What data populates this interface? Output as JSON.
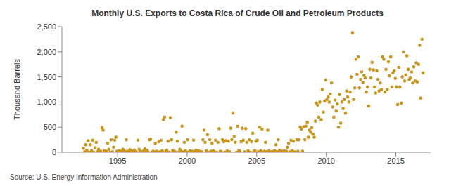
{
  "chart_data": {
    "type": "scatter",
    "title": "Monthly U.S. Exports to Costa Rica of Crude Oil and Petroleum Products",
    "y_label": "Thousand Barrels",
    "source": "Source: U.S. Energy Information Administration",
    "color": "#c8951e",
    "marker": "circle",
    "grid": false,
    "xlim": [
      1991,
      2017.5
    ],
    "xticks": [
      1995,
      2000,
      2005,
      2010,
      2015
    ],
    "ylim": [
      0,
      2500
    ],
    "yticks": [
      0,
      500,
      {
        "value": 1000,
        "label": "1,000"
      },
      {
        "value": 1500,
        "label": "1,500"
      },
      {
        "value": 2000,
        "label": "2,000"
      },
      {
        "value": 2500,
        "label": "2,500"
      }
    ],
    "x": [
      1992.54,
      1992.63,
      1992.71,
      1992.79,
      1992.88,
      1992.96,
      1993.04,
      1993.13,
      1993.21,
      1993.29,
      1993.38,
      1993.46,
      1993.54,
      1993.63,
      1993.71,
      1993.79,
      1993.88,
      1993.96,
      1994.04,
      1994.13,
      1994.21,
      1994.29,
      1994.38,
      1994.46,
      1994.54,
      1994.63,
      1994.71,
      1994.79,
      1994.88,
      1994.96,
      1995.04,
      1995.13,
      1995.21,
      1995.29,
      1995.38,
      1995.46,
      1995.54,
      1995.63,
      1995.71,
      1995.79,
      1995.88,
      1995.96,
      1996.04,
      1996.13,
      1996.21,
      1996.29,
      1996.38,
      1996.46,
      1996.54,
      1996.63,
      1996.71,
      1996.79,
      1996.88,
      1996.96,
      1997.04,
      1997.13,
      1997.21,
      1997.29,
      1997.38,
      1997.46,
      1997.54,
      1997.63,
      1997.71,
      1997.79,
      1997.88,
      1997.96,
      1998.04,
      1998.13,
      1998.21,
      1998.29,
      1998.38,
      1998.46,
      1998.54,
      1998.63,
      1998.71,
      1998.79,
      1998.88,
      1998.96,
      1999.04,
      1999.13,
      1999.21,
      1999.29,
      1999.38,
      1999.46,
      1999.54,
      1999.63,
      1999.71,
      1999.79,
      1999.88,
      1999.96,
      2000.04,
      2000.13,
      2000.21,
      2000.29,
      2000.38,
      2000.46,
      2000.54,
      2000.63,
      2000.71,
      2000.79,
      2000.88,
      2000.96,
      2001.04,
      2001.13,
      2001.21,
      2001.29,
      2001.38,
      2001.46,
      2001.54,
      2001.63,
      2001.71,
      2001.79,
      2001.88,
      2001.96,
      2002.04,
      2002.13,
      2002.21,
      2002.29,
      2002.38,
      2002.46,
      2002.54,
      2002.63,
      2002.71,
      2002.79,
      2002.88,
      2002.96,
      2003.04,
      2003.13,
      2003.21,
      2003.29,
      2003.38,
      2003.46,
      2003.54,
      2003.63,
      2003.71,
      2003.79,
      2003.88,
      2003.96,
      2004.04,
      2004.13,
      2004.21,
      2004.29,
      2004.38,
      2004.46,
      2004.54,
      2004.63,
      2004.71,
      2004.79,
      2004.88,
      2004.96,
      2005.04,
      2005.13,
      2005.21,
      2005.29,
      2005.38,
      2005.46,
      2005.54,
      2005.63,
      2005.71,
      2005.79,
      2005.88,
      2005.96,
      2006.04,
      2006.13,
      2006.21,
      2006.29,
      2006.38,
      2006.46,
      2006.54,
      2006.63,
      2006.71,
      2006.79,
      2006.88,
      2006.96,
      2007.04,
      2007.13,
      2007.21,
      2007.29,
      2007.38,
      2007.46,
      2007.54,
      2007.63,
      2007.71,
      2007.79,
      2007.88,
      2007.96,
      2008.04,
      2008.13,
      2008.21,
      2008.29,
      2008.38,
      2008.46,
      2008.54,
      2008.63,
      2008.71,
      2008.79,
      2008.88,
      2008.96,
      2009.04,
      2009.13,
      2009.21,
      2009.29,
      2009.38,
      2009.46,
      2009.54,
      2009.63,
      2009.71,
      2009.79,
      2009.88,
      2009.96,
      2010.04,
      2010.13,
      2010.21,
      2010.29,
      2010.38,
      2010.46,
      2010.54,
      2010.63,
      2010.71,
      2010.79,
      2010.88,
      2010.96,
      2011.04,
      2011.13,
      2011.21,
      2011.29,
      2011.38,
      2011.46,
      2011.54,
      2011.63,
      2011.71,
      2011.79,
      2011.88,
      2011.96,
      2012.04,
      2012.13,
      2012.21,
      2012.29,
      2012.38,
      2012.46,
      2012.54,
      2012.63,
      2012.71,
      2012.79,
      2012.88,
      2012.96,
      2013.04,
      2013.13,
      2013.21,
      2013.29,
      2013.38,
      2013.46,
      2013.54,
      2013.63,
      2013.71,
      2013.79,
      2013.88,
      2013.96,
      2014.04,
      2014.13,
      2014.21,
      2014.29,
      2014.38,
      2014.46,
      2014.54,
      2014.63,
      2014.71,
      2014.79,
      2014.88,
      2014.96,
      2015.04,
      2015.13,
      2015.21,
      2015.29,
      2015.38,
      2015.46,
      2015.54,
      2015.63,
      2015.71,
      2015.79,
      2015.88,
      2015.96,
      2016.04,
      2016.13,
      2016.21,
      2016.29,
      2016.38,
      2016.46,
      2016.54,
      2016.63,
      2016.71,
      2016.79,
      2016.88,
      2016.96
    ],
    "values": [
      80,
      10,
      150,
      40,
      230,
      0,
      150,
      30,
      240,
      0,
      90,
      200,
      10,
      60,
      0,
      20,
      490,
      440,
      30,
      0,
      20,
      180,
      60,
      0,
      250,
      10,
      100,
      240,
      300,
      20,
      10,
      30,
      0,
      20,
      60,
      40,
      10,
      250,
      20,
      0,
      50,
      30,
      20,
      0,
      40,
      10,
      0,
      240,
      60,
      20,
      10,
      0,
      30,
      70,
      10,
      40,
      0,
      250,
      260,
      0,
      20,
      10,
      180,
      20,
      0,
      210,
      10,
      240,
      30,
      650,
      700,
      20,
      40,
      220,
      0,
      690,
      250,
      30,
      20,
      10,
      400,
      220,
      0,
      60,
      30,
      520,
      10,
      200,
      30,
      0,
      250,
      10,
      30,
      0,
      20,
      240,
      10,
      40,
      0,
      30,
      20,
      0,
      10,
      250,
      440,
      200,
      30,
      350,
      0,
      250,
      20,
      180,
      30,
      10,
      240,
      0,
      200,
      470,
      20,
      10,
      250,
      210,
      0,
      230,
      30,
      220,
      10,
      480,
      250,
      780,
      320,
      200,
      0,
      520,
      30,
      20,
      210,
      480,
      240,
      10,
      470,
      200,
      30,
      250,
      0,
      210,
      380,
      20,
      30,
      220,
      240,
      10,
      500,
      30,
      460,
      0,
      20,
      200,
      10,
      440,
      30,
      0,
      10,
      0,
      20,
      30,
      150,
      10,
      250,
      40,
      0,
      20,
      10,
      30,
      0,
      20,
      100,
      180,
      10,
      240,
      30,
      220,
      10,
      0,
      250,
      20,
      250,
      500,
      460,
      20,
      510,
      250,
      520,
      600,
      300,
      440,
      400,
      490,
      360,
      300,
      620,
      980,
      940,
      700,
      1000,
      650,
      1250,
      800,
      1020,
      1440,
      1050,
      1100,
      1000,
      1160,
      1380,
      900,
      700,
      1040,
      820,
      960,
      500,
      1150,
      580,
      1000,
      870,
      1050,
      780,
      1220,
      1100,
      1000,
      1200,
      1500,
      2380,
      1050,
      1280,
      1850,
      1550,
      1900,
      1280,
      1450,
      1600,
      1390,
      1530,
      1480,
      1200,
      1300,
      920,
      1650,
      1480,
      1790,
      1640,
      1300,
      1180,
      1620,
      1450,
      1220,
      1380,
      1250,
      1900,
      1850,
      1200,
      1650,
      1250,
      1800,
      1520,
      1900,
      1300,
      1580,
      1620,
      1470,
      1300,
      950,
      1690,
      1300,
      980,
      1500,
      2000,
      1420,
      1540,
      1920,
      1650,
      1450,
      1480,
      1600,
      1380,
      1700,
      1420,
      1780,
      1400,
      1750,
      2130,
      1080,
      2250,
      1580
    ]
  }
}
